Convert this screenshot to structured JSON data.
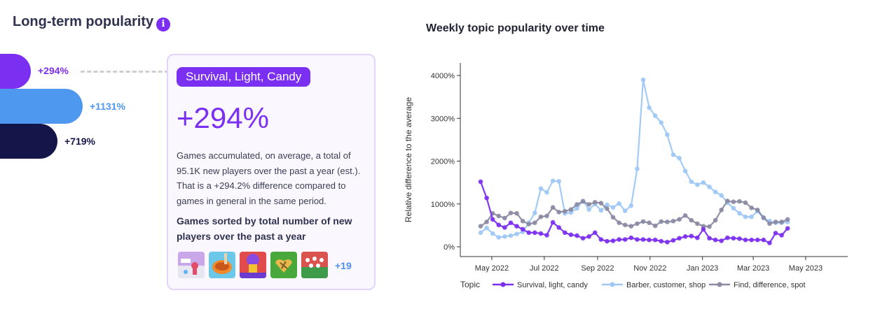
{
  "panel": {
    "title": "Long-term popularity",
    "info_icon": "i",
    "bars": [
      {
        "label": "+294%",
        "color": "#7b2ff0",
        "label_color": "#7b2ff0"
      },
      {
        "label": "+1131%",
        "color": "#4f98f0",
        "label_color": "#4f98f0"
      },
      {
        "label": "+719%",
        "color": "#14164a",
        "label_color": "#14164a"
      }
    ]
  },
  "card": {
    "tag": "Survival, Light, Candy",
    "percent": "+294%",
    "description": "Games accumulated, on average, a total of 95.1K new players over the past a year (est.). That is a +294.2% difference compared to games in general in the same period.",
    "subheading": "Games sorted by total number of new players over the past a year",
    "games": [
      "game-thumbnail-1",
      "game-thumbnail-2",
      "game-thumbnail-3",
      "game-thumbnail-4",
      "game-thumbnail-5"
    ],
    "more": "+19"
  },
  "chart_data": {
    "type": "line",
    "title": "Weekly topic popularity over time",
    "ylabel": "Relative difference to the average",
    "xlabel": "",
    "ylim": [
      -100,
      4200
    ],
    "yticks": [
      0,
      1000,
      2000,
      3000,
      4000
    ],
    "ytick_labels": [
      "0%",
      "1000%",
      "2000%",
      "3000%",
      "4000%"
    ],
    "xticks": [
      "2022-05-01",
      "2022-07-01",
      "2022-09-01",
      "2022-11-01",
      "2023-01-01",
      "2023-03-01",
      "2023-05-01"
    ],
    "xtick_labels": [
      "May 2022",
      "Jul 2022",
      "Sep 2022",
      "Nov 2022",
      "Jan 2023",
      "Mar 2023",
      "May 2023"
    ],
    "x_start": "2022-04-18",
    "x_step_days": 7,
    "legend_title": "Topic",
    "legend_position": "bottom",
    "series": [
      {
        "name": "Survival, light, candy",
        "color": "#7b2ff0",
        "values": [
          1520,
          1140,
          640,
          510,
          450,
          560,
          480,
          410,
          330,
          330,
          310,
          270,
          570,
          450,
          330,
          280,
          260,
          200,
          240,
          330,
          170,
          130,
          140,
          170,
          170,
          210,
          170,
          170,
          160,
          160,
          130,
          110,
          150,
          200,
          240,
          250,
          210,
          410,
          200,
          160,
          140,
          210,
          200,
          190,
          160,
          160,
          160,
          160,
          90,
          320,
          270,
          430
        ]
      },
      {
        "name": "Barber, customer, shop",
        "color": "#9fc8f5",
        "values": [
          330,
          440,
          310,
          220,
          240,
          260,
          300,
          350,
          560,
          790,
          1360,
          1270,
          1540,
          1530,
          780,
          800,
          900,
          1070,
          870,
          1000,
          850,
          980,
          920,
          1010,
          840,
          960,
          1820,
          3900,
          3250,
          3060,
          2900,
          2620,
          2150,
          2070,
          1770,
          1520,
          1450,
          1500,
          1400,
          1280,
          1200,
          1030,
          900,
          780,
          700,
          700,
          830,
          670,
          600,
          560,
          560,
          580
        ]
      },
      {
        "name": "Find, difference, spot",
        "color": "#8a8aa3",
        "values": [
          480,
          580,
          780,
          720,
          670,
          790,
          780,
          600,
          530,
          560,
          700,
          720,
          920,
          810,
          830,
          870,
          990,
          1060,
          990,
          1040,
          1020,
          890,
          690,
          560,
          510,
          480,
          540,
          590,
          560,
          490,
          590,
          580,
          600,
          640,
          730,
          620,
          540,
          480,
          470,
          620,
          860,
          1070,
          1050,
          1060,
          1030,
          910,
          860,
          680,
          540,
          580,
          580,
          640
        ]
      }
    ]
  }
}
